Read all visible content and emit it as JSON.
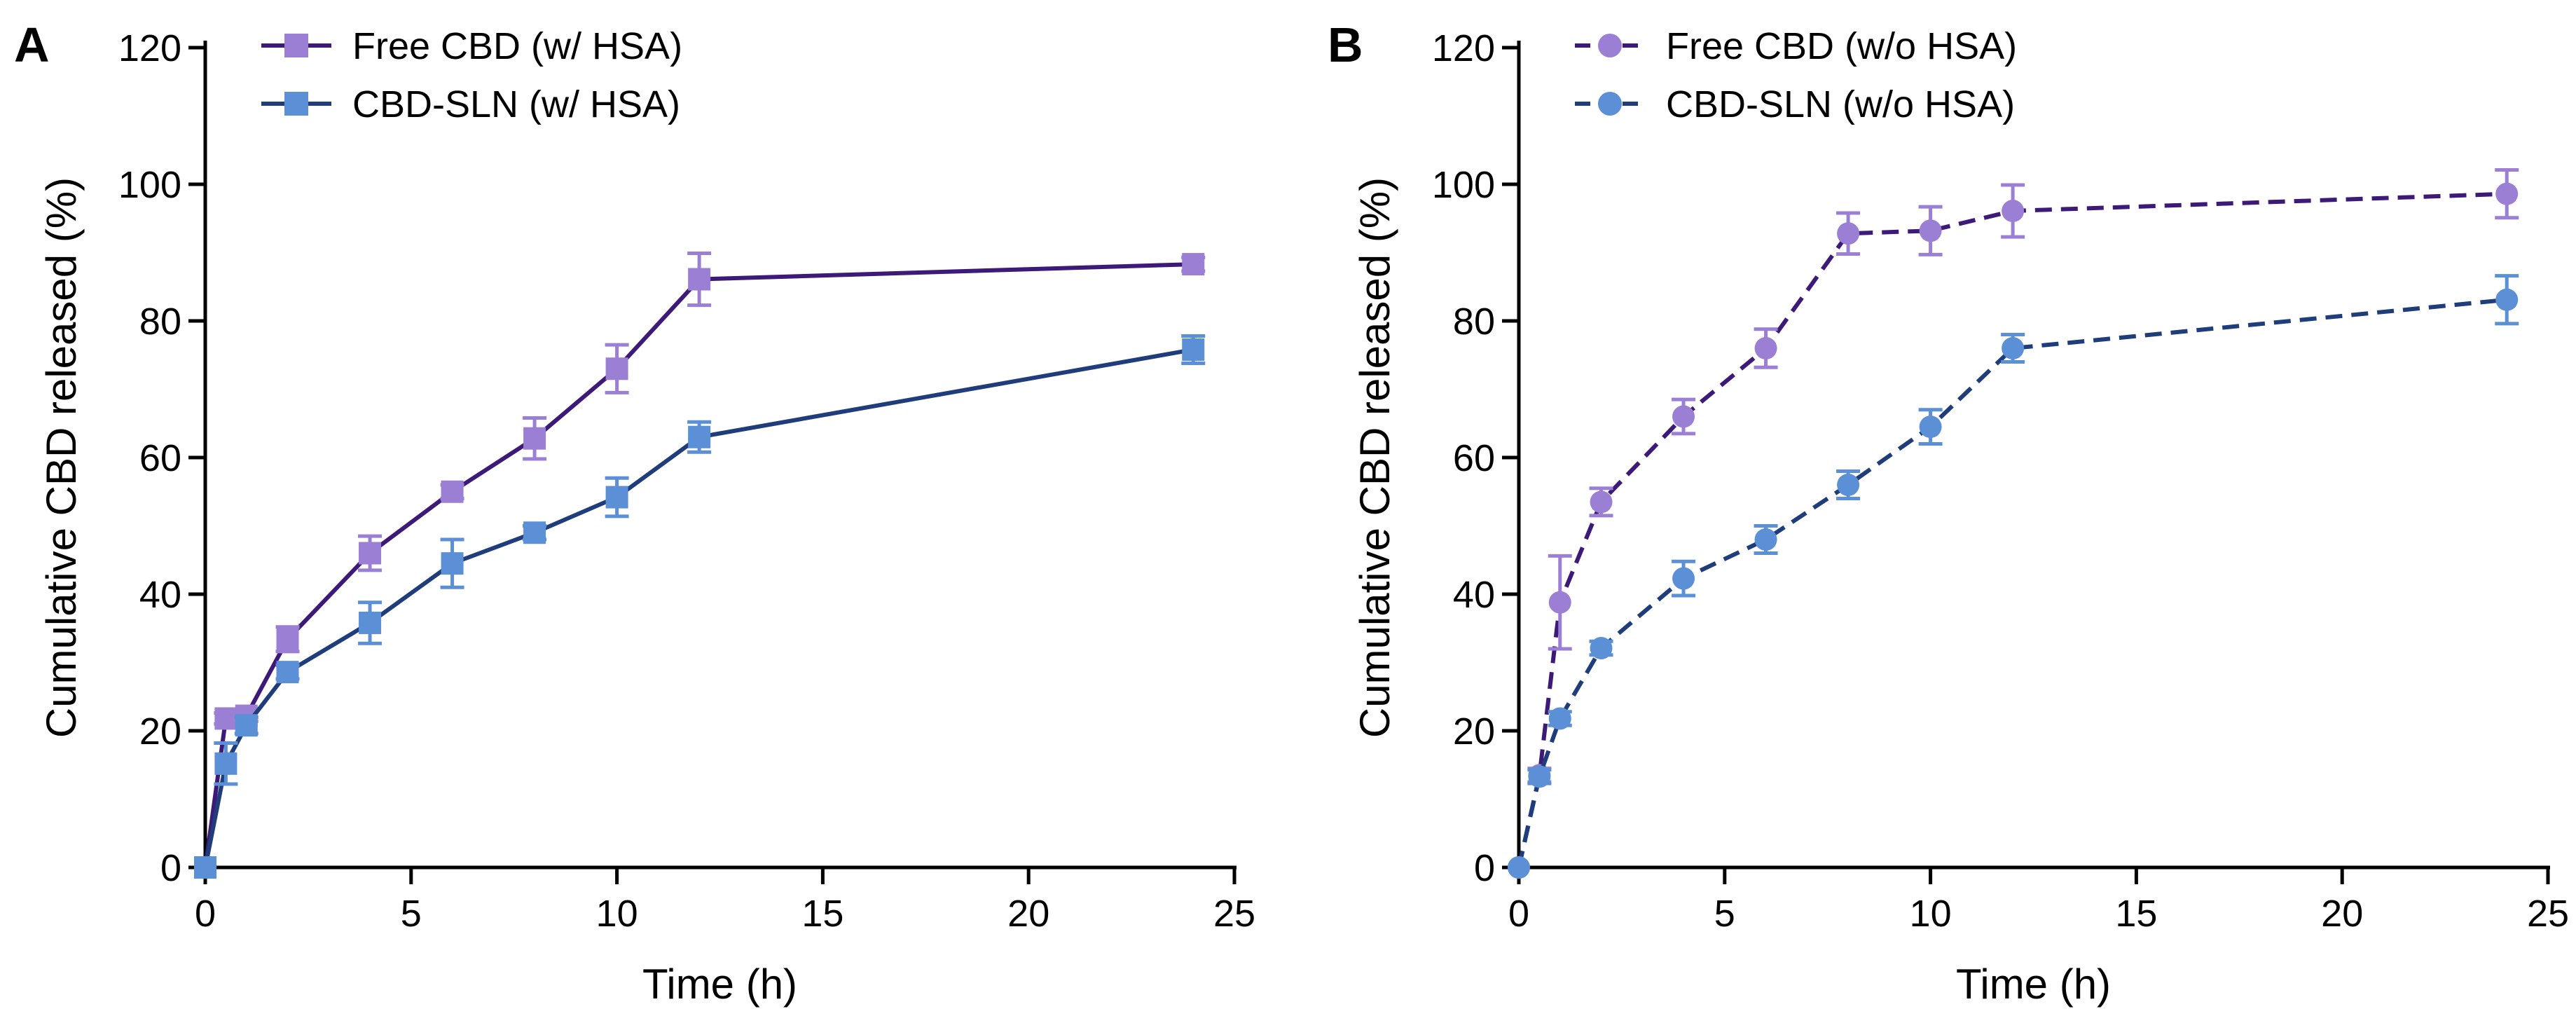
{
  "chart_data": [
    {
      "panel_label": "A",
      "type": "line",
      "xlabel": "Time (h)",
      "ylabel": "Cumulative CBD released (%)",
      "xlim": [
        0,
        25
      ],
      "ylim": [
        0,
        120
      ],
      "xticks": [
        0,
        5,
        10,
        15,
        20,
        25
      ],
      "yticks": [
        0,
        20,
        40,
        60,
        80,
        100,
        120
      ],
      "grid": false,
      "legend_position": "top-left",
      "series": [
        {
          "name": "Free CBD (w/ HSA)",
          "marker": "square",
          "line_style": "solid",
          "line_color": "#3d1a78",
          "marker_color": "#9b7fd4",
          "x": [
            0,
            0.5,
            1,
            2,
            4,
            6,
            8,
            10,
            12,
            24
          ],
          "y": [
            0,
            21.8,
            22.2,
            33.4,
            46,
            55,
            62.8,
            73,
            86.1,
            88.3
          ],
          "err": [
            0,
            0.8,
            0.8,
            1.8,
            2.5,
            1,
            3,
            3.5,
            3.8,
            1
          ]
        },
        {
          "name": "CBD-SLN (w/ HSA)",
          "marker": "square",
          "line_style": "solid",
          "line_color": "#1f3d7a",
          "marker_color": "#5b8fd6",
          "x": [
            0,
            0.5,
            1,
            2,
            4,
            6,
            8,
            10,
            12,
            24
          ],
          "y": [
            0,
            15.2,
            20.8,
            28.6,
            35.8,
            44.5,
            49,
            54.2,
            63,
            75.8
          ],
          "err": [
            0,
            3,
            1.2,
            1,
            3,
            3.5,
            1,
            2.8,
            2.2,
            2
          ]
        }
      ]
    },
    {
      "panel_label": "B",
      "type": "line",
      "xlabel": "Time (h)",
      "ylabel": "Cumulative CBD released (%)",
      "xlim": [
        0,
        25
      ],
      "ylim": [
        0,
        120
      ],
      "xticks": [
        0,
        5,
        10,
        15,
        20,
        25
      ],
      "yticks": [
        0,
        20,
        40,
        60,
        80,
        100,
        120
      ],
      "grid": false,
      "legend_position": "top-left",
      "series": [
        {
          "name": "Free CBD (w/o HSA)",
          "marker": "circle",
          "line_style": "dashed",
          "line_color": "#3d1a78",
          "marker_color": "#9b7fd4",
          "x": [
            0,
            0.5,
            1,
            2,
            4,
            6,
            8,
            10,
            12,
            24
          ],
          "y": [
            0,
            13.5,
            38.8,
            53.5,
            66,
            76,
            92.8,
            93.2,
            96.1,
            98.6
          ],
          "err": [
            0,
            1,
            6.8,
            2,
            2.5,
            2.8,
            3,
            3.5,
            3.8,
            3.5
          ]
        },
        {
          "name": "CBD-SLN (w/o HSA)",
          "marker": "circle",
          "line_style": "dashed",
          "line_color": "#1f3d7a",
          "marker_color": "#5b8fd6",
          "x": [
            0,
            0.5,
            1,
            2,
            4,
            6,
            8,
            10,
            12,
            24
          ],
          "y": [
            0,
            13.3,
            21.8,
            32.1,
            42.3,
            48,
            56,
            64.5,
            76,
            83.1
          ],
          "err": [
            0,
            1,
            1,
            1,
            2.5,
            2,
            2,
            2.5,
            2,
            3.5
          ]
        }
      ]
    }
  ]
}
